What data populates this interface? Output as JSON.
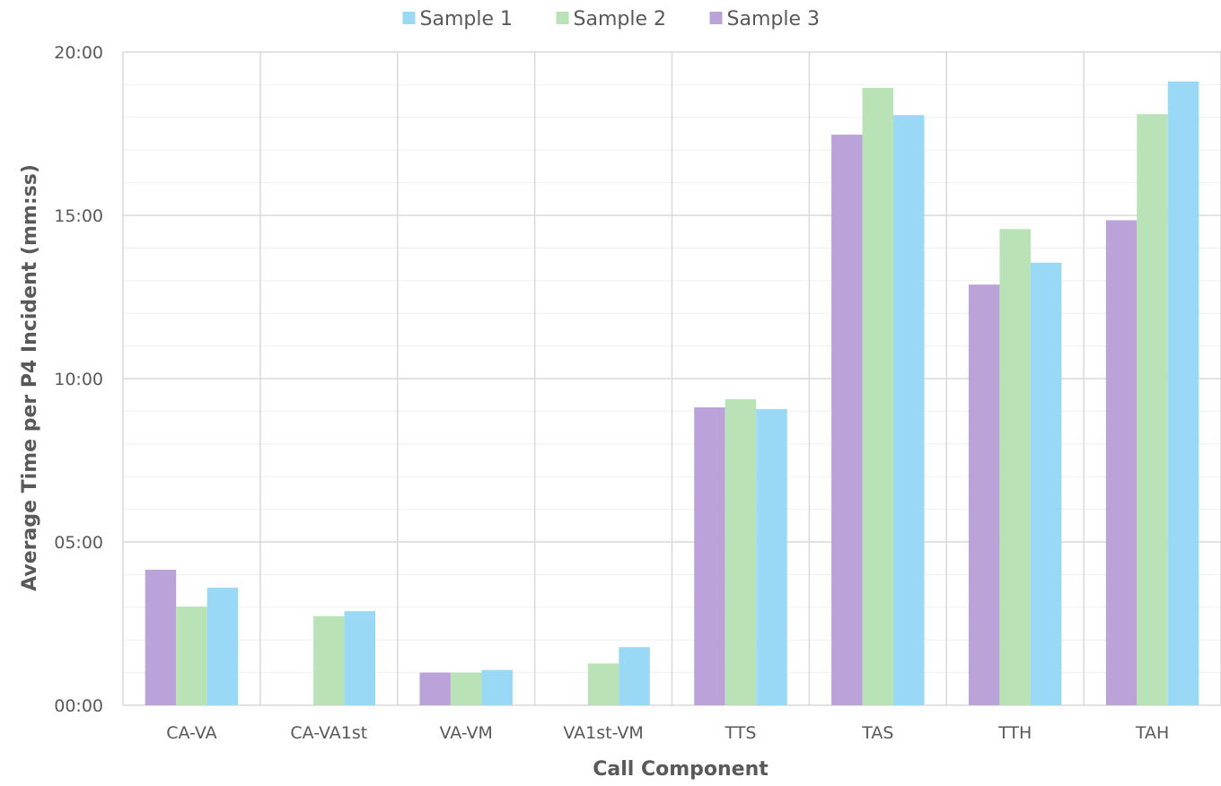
{
  "chart_data": {
    "type": "bar",
    "xlabel": "Call Component",
    "ylabel": "Average Time per P4 Incident (mm:ss)",
    "categories": [
      "CA-VA",
      "CA-VA1st",
      "VA-VM",
      "VA1st-VM",
      "TTS",
      "TAS",
      "TTH",
      "TAH"
    ],
    "y_unit": "minutes",
    "ylim": [
      0,
      20
    ],
    "yticks": [
      0,
      5,
      10,
      15,
      20
    ],
    "ytick_labels": [
      "00:00",
      "05:00",
      "10:00",
      "15:00",
      "20:00"
    ],
    "grid": true,
    "legend_position": "top",
    "series": [
      {
        "name": "Sample 3",
        "color": "#bba3da",
        "values": [
          4.15,
          null,
          1.0,
          null,
          9.12,
          17.47,
          12.88,
          14.85
        ]
      },
      {
        "name": "Sample 2",
        "color": "#b9e3b6",
        "values": [
          3.02,
          2.73,
          1.0,
          1.28,
          9.37,
          18.9,
          14.58,
          18.1
        ]
      },
      {
        "name": "Sample 1",
        "color": "#99d9f5",
        "values": [
          3.6,
          2.88,
          1.08,
          1.78,
          9.07,
          18.07,
          13.55,
          19.1
        ]
      }
    ]
  }
}
